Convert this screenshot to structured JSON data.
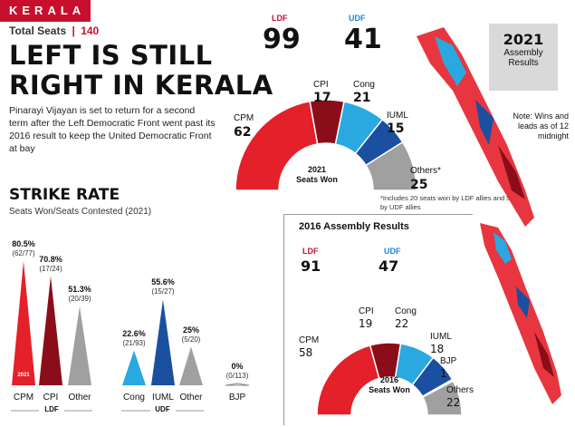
{
  "banner": "KERALA",
  "total_seats_label": "Total Seats",
  "total_seats_sep": "|",
  "total_seats_value": "140",
  "headline_line1": "LEFT IS STILL",
  "headline_line2": "RIGHT IN KERALA",
  "blurb": "Pinarayi Vijayan is set to return for a second term after the Left Democratic Front went past its 2016 result to keep the United Democratic Front at bay",
  "badge": {
    "year": "2021",
    "line1": "Assembly",
    "line2": "Results"
  },
  "note": "Note: Wins and leads as of 12 midnight",
  "colors": {
    "red": "#e4202a",
    "dark_red": "#8b0d1a",
    "light_blue": "#29a9e0",
    "dark_blue": "#1b4fa0",
    "gray": "#a0a0a0"
  },
  "chart_data": [
    {
      "type": "pie",
      "subtype": "semi-donut",
      "title": "2021 Seats Won",
      "title_line1": "2021",
      "title_line2": "Seats Won",
      "alliances": {
        "LDF": 99,
        "UDF": 41
      },
      "labels": [
        "CPM",
        "CPI",
        "Cong",
        "IUML",
        "Others*"
      ],
      "values": [
        62,
        17,
        21,
        15,
        25
      ],
      "footnote": "*Includes 20 seats won by LDF allies and 5 by UDF allies"
    },
    {
      "type": "pie",
      "subtype": "semi-donut",
      "title": "2016 Assembly Results",
      "center_line1": "2016",
      "center_line2": "Seats Won",
      "alliances": {
        "LDF": 91,
        "UDF": 47
      },
      "labels": [
        "CPM",
        "CPI",
        "Cong",
        "IUML",
        "BJP",
        "Others"
      ],
      "values": [
        58,
        19,
        22,
        18,
        1,
        22
      ]
    },
    {
      "type": "bar",
      "title": "STRIKE RATE",
      "subtitle": "Seats Won/Seats Contested (2021)",
      "series": [
        {
          "name": "LDF",
          "categories": [
            "CPM",
            "CPI",
            "Other"
          ],
          "values": [
            80.5,
            70.8,
            51.3
          ],
          "labels": [
            "80.5%",
            "70.8%",
            "51.3%"
          ],
          "fractions": [
            "(62/77)",
            "(17/24)",
            "(20/39)"
          ]
        },
        {
          "name": "UDF",
          "categories": [
            "Cong",
            "IUML",
            "Other"
          ],
          "values": [
            22.6,
            55.6,
            25
          ],
          "labels": [
            "22.6%",
            "55.6%",
            "25%"
          ],
          "fractions": [
            "(21/93)",
            "(15/27)",
            "(5/20)"
          ]
        },
        {
          "name": "",
          "categories": [
            "BJP"
          ],
          "values": [
            0
          ],
          "labels": [
            "0%"
          ],
          "fractions": [
            "(0/113)"
          ]
        }
      ],
      "bar_inner_label": "2021",
      "ylim": [
        0,
        100
      ]
    }
  ]
}
